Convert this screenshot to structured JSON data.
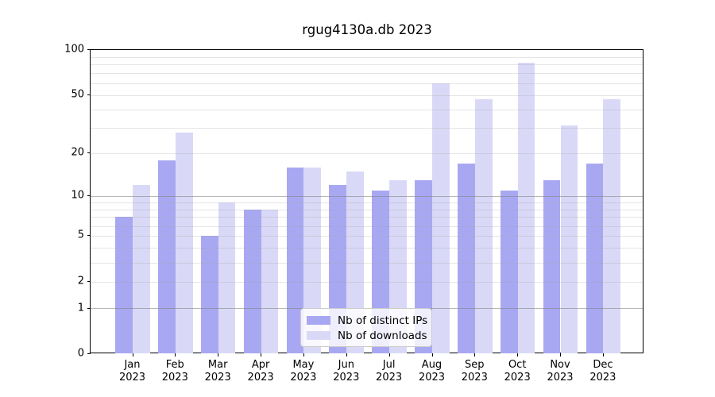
{
  "figure": {
    "title": "rgug4130a.db 2023"
  },
  "chart_data": {
    "type": "bar",
    "title": "rgug4130a.db 2023",
    "categories": [
      "Jan",
      "Feb",
      "Mar",
      "Apr",
      "May",
      "Jun",
      "Jul",
      "Aug",
      "Sep",
      "Oct",
      "Nov",
      "Dec"
    ],
    "category_year": "2023",
    "series": [
      {
        "name": "Nb of distinct IPs",
        "color": "#a8a8f2",
        "values": [
          7,
          18,
          5,
          8,
          16,
          12,
          11,
          13,
          17,
          11,
          13,
          17
        ]
      },
      {
        "name": "Nb of downloads",
        "color": "#d9d9f7",
        "values": [
          12,
          28,
          9,
          8,
          16,
          15,
          13,
          60,
          47,
          82,
          31,
          47
        ]
      }
    ],
    "xlabel": "",
    "ylabel": "",
    "yscale": "log1p",
    "ylim": [
      0,
      100
    ],
    "ytick_values": [
      0,
      1,
      2,
      5,
      10,
      20,
      50,
      100
    ],
    "ytick_labels": [
      "0",
      "1",
      "2",
      "5",
      "10",
      "20",
      "50",
      "100"
    ],
    "major_gridlines": [
      1,
      10
    ],
    "minor_gridlines": [
      2,
      3,
      4,
      5,
      6,
      7,
      8,
      9,
      20,
      30,
      40,
      50,
      60,
      70,
      80,
      90
    ],
    "grid": "on",
    "legend_position": "lower center",
    "legend_items": [
      "Nb of distinct IPs",
      "Nb of downloads"
    ]
  }
}
